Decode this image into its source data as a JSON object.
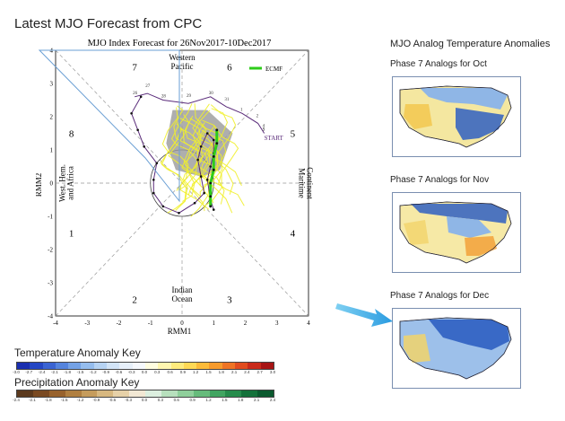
{
  "page_title": "Latest MJO Forecast from CPC",
  "chart_data": {
    "type": "diagram",
    "title": "MJO Index Forecast for 26Nov2017-10Dec2017",
    "xlabel": "RMM1",
    "ylabel": "RMM2",
    "xlim": [
      -4,
      4
    ],
    "ylim": [
      -4,
      4
    ],
    "ticks": [
      "-4",
      "-3",
      "-2",
      "-1",
      "0",
      "1",
      "2",
      "3",
      "4"
    ],
    "phase_numbers": [
      "1",
      "2",
      "3",
      "4",
      "5",
      "6",
      "7",
      "8"
    ],
    "regions": {
      "top": [
        "Western",
        "Pacific"
      ],
      "bottom": [
        "Indian",
        "Ocean"
      ],
      "right": [
        "Maritime",
        "Continent"
      ],
      "left": [
        "West. Hem.",
        "and Africa"
      ]
    },
    "legend": "ECMF",
    "start_label": "START",
    "observed_day_labels": [
      "26",
      "27",
      "28",
      "29",
      "30",
      "31",
      "1",
      "2",
      "3",
      "4",
      "5"
    ],
    "observed_path": [
      [
        -1.5,
        2.6
      ],
      [
        -1.1,
        2.7
      ],
      [
        -0.6,
        2.5
      ],
      [
        0.2,
        2.4
      ],
      [
        0.9,
        2.6
      ],
      [
        1.4,
        2.3
      ],
      [
        1.9,
        2.1
      ],
      [
        2.4,
        1.8
      ],
      [
        2.6,
        1.5
      ]
    ],
    "observed_path_2": [
      [
        -1.3,
        2.6
      ],
      [
        -1.6,
        2.1
      ],
      [
        -1.4,
        1.6
      ],
      [
        -1.2,
        1.1
      ],
      [
        -0.8,
        0.6
      ],
      [
        -0.9,
        0.1
      ],
      [
        -0.9,
        -0.3
      ],
      [
        -0.6,
        -0.7
      ],
      [
        -0.1,
        -0.9
      ],
      [
        0.4,
        -0.6
      ],
      [
        0.7,
        -0.3
      ],
      [
        0.6,
        0.2
      ],
      [
        0.5,
        0.7
      ],
      [
        0.6,
        1.1
      ],
      [
        0.8,
        1.5
      ],
      [
        1.0,
        1.3
      ],
      [
        1.0,
        0.9
      ],
      [
        0.9,
        0.5
      ],
      [
        0.8,
        0.1
      ],
      [
        0.9,
        -0.5
      ],
      [
        1.0,
        -0.8
      ]
    ],
    "ecmf_mean": [
      [
        1.1,
        1.6
      ],
      [
        1.1,
        1.2
      ],
      [
        1.0,
        0.8
      ],
      [
        1.0,
        0.4
      ],
      [
        0.9,
        0.0
      ],
      [
        0.9,
        -0.4
      ],
      [
        0.9,
        -0.7
      ]
    ],
    "colors": {
      "ensemble": "#f1ef2a",
      "ecmf": "#2ecc1a",
      "observed": "#5a2b7a",
      "spread": "#9a9a9a"
    }
  },
  "right_panel": {
    "title": "MJO Analog Temperature Anomalies",
    "maps": [
      {
        "label": "Phase 7 Analogs for Oct"
      },
      {
        "label": "Phase 7 Analogs for Nov"
      },
      {
        "label": "Phase 7 Analogs for Dec"
      }
    ]
  },
  "temperature_key": {
    "title": "Temperature Anomaly Key",
    "values": [
      "-3.0",
      "-2.7",
      "-2.4",
      "-2.1",
      "-1.8",
      "-1.5",
      "-1.2",
      "-0.9",
      "-0.6",
      "-0.3",
      "0.0",
      "0.3",
      "0.6",
      "0.9",
      "1.2",
      "1.5",
      "1.8",
      "2.1",
      "2.4",
      "2.7",
      "3.0"
    ],
    "colors": [
      "#1a2fb0",
      "#2547c4",
      "#3b64d2",
      "#5584dd",
      "#74a2e6",
      "#95bdee",
      "#b6d3f3",
      "#d2e4f7",
      "#e7f0fa",
      "#f6f9fd",
      "#fffde0",
      "#fff6b0",
      "#ffeb7d",
      "#ffd955",
      "#fcbb3a",
      "#f79b2c",
      "#ef7424",
      "#e14c1e",
      "#c92a1a",
      "#a71414"
    ]
  },
  "precip_key": {
    "title": "Precipitation Anomaly Key",
    "values": [
      "-2.4",
      "-2.1",
      "-1.8",
      "-1.5",
      "-1.2",
      "-0.9",
      "-0.6",
      "-0.3",
      "0.0",
      "0.3",
      "0.6",
      "0.9",
      "1.2",
      "1.5",
      "1.8",
      "2.1",
      "2.4"
    ],
    "colors": [
      "#5c3a1e",
      "#7a4a22",
      "#98622c",
      "#b07f40",
      "#c59c5c",
      "#d7b880",
      "#e6d1a8",
      "#f2e8d4",
      "#dcefdf",
      "#b7e0bd",
      "#8fcf9b",
      "#66bb7b",
      "#41a561",
      "#268c4c",
      "#14723b",
      "#0b5a2f"
    ]
  }
}
